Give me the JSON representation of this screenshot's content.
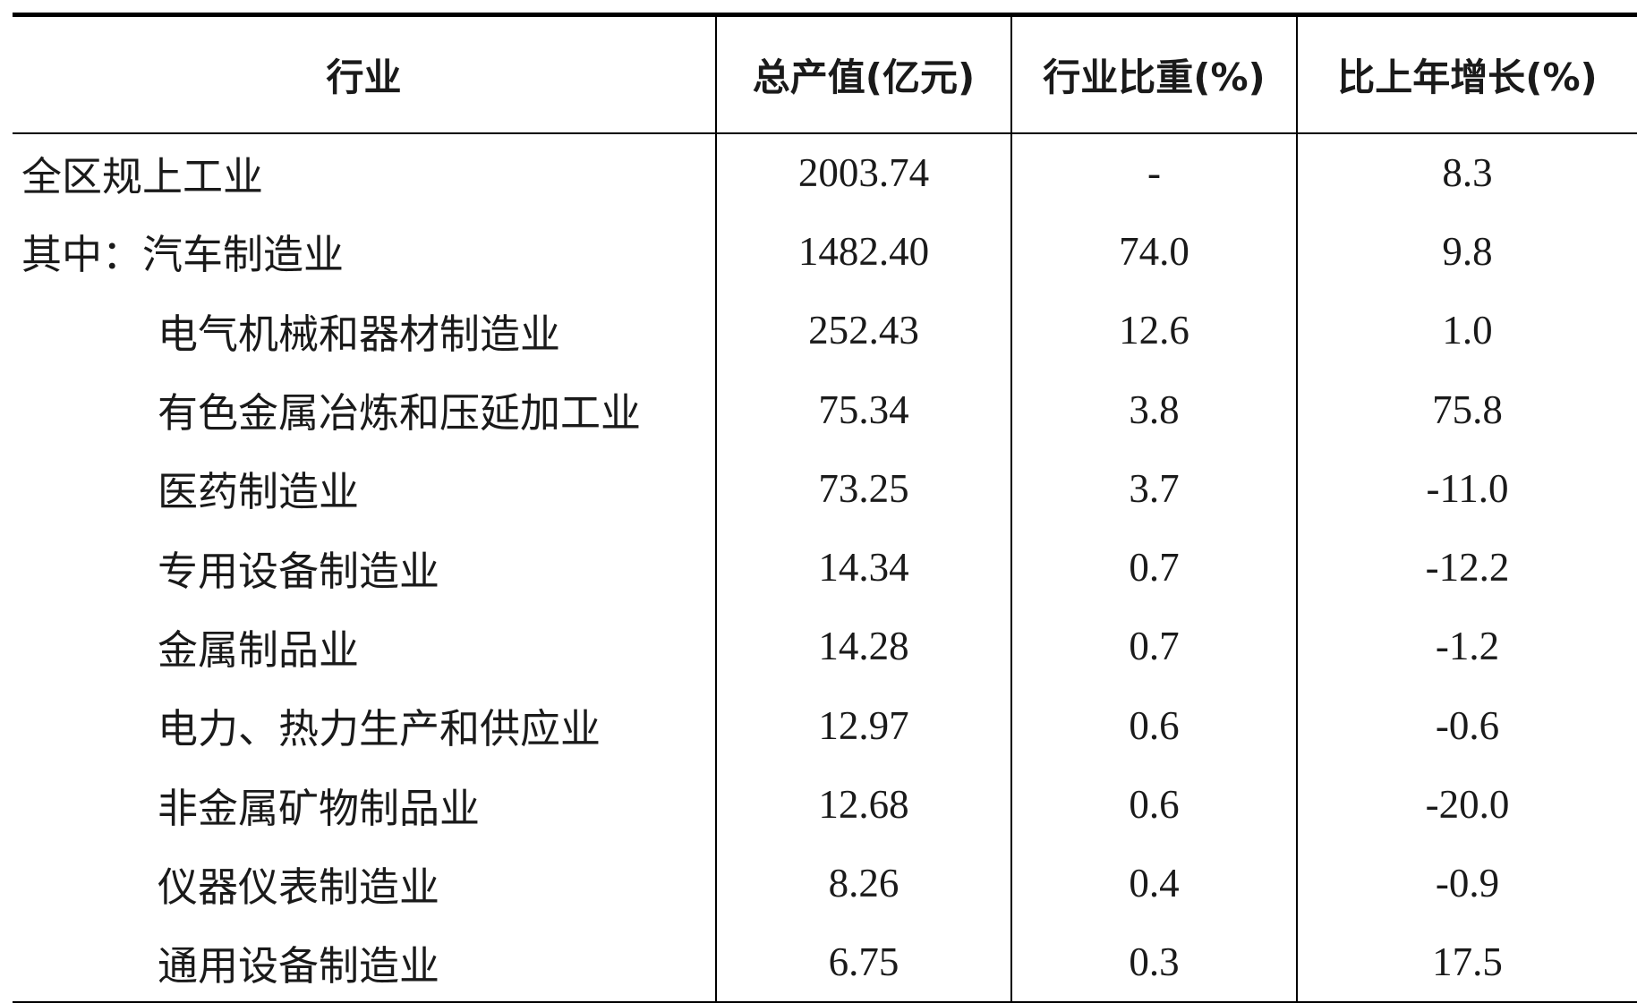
{
  "table": {
    "headers": {
      "industry": "行业",
      "output": "总产值(亿元)",
      "share": "行业比重(%)",
      "growth": "比上年增长(%)"
    },
    "rows": [
      {
        "name": "全区规上工业",
        "output": "2003.74",
        "share": "-",
        "growth": "8.3"
      },
      {
        "name": "其中：汽车制造业",
        "output": "1482.40",
        "share": "74.0",
        "growth": "9.8"
      },
      {
        "name": "电气机械和器材制造业",
        "output": "252.43",
        "share": "12.6",
        "growth": "1.0"
      },
      {
        "name": "有色金属冶炼和压延加工业",
        "output": "75.34",
        "share": "3.8",
        "growth": "75.8"
      },
      {
        "name": "医药制造业",
        "output": "73.25",
        "share": "3.7",
        "growth": "-11.0"
      },
      {
        "name": "专用设备制造业",
        "output": "14.34",
        "share": "0.7",
        "growth": "-12.2"
      },
      {
        "name": "金属制品业",
        "output": "14.28",
        "share": "0.7",
        "growth": "-1.2"
      },
      {
        "name": "电力、热力生产和供应业",
        "output": "12.97",
        "share": "0.6",
        "growth": "-0.6"
      },
      {
        "name": "非金属矿物制品业",
        "output": "12.68",
        "share": "0.6",
        "growth": "-20.0"
      },
      {
        "name": "仪器仪表制造业",
        "output": "8.26",
        "share": "0.4",
        "growth": "-0.9"
      },
      {
        "name": "通用设备制造业",
        "output": "6.75",
        "share": "0.3",
        "growth": "17.5"
      }
    ]
  }
}
